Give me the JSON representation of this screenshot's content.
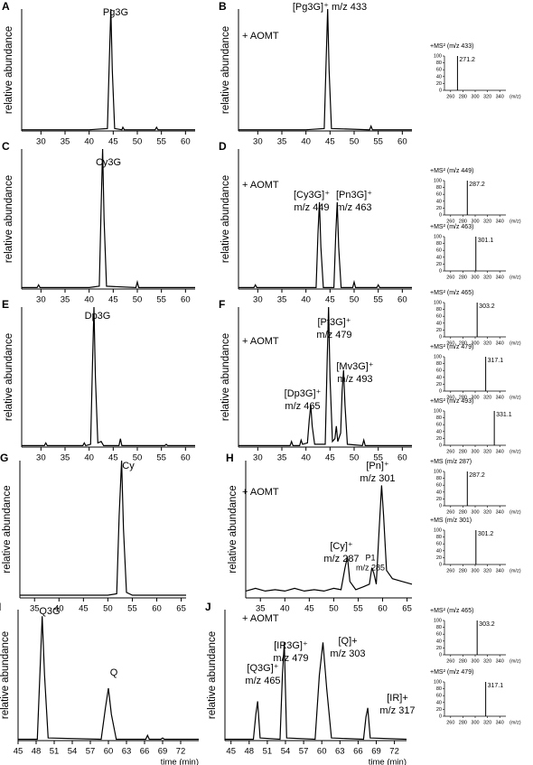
{
  "chart_data": [
    {
      "type": "line",
      "panel_label": "A",
      "ylabel": "relative abundance",
      "annotations": [
        "Pg3G"
      ],
      "x": [
        26,
        30,
        40,
        43.8,
        44.2,
        44.5,
        44.8,
        45.3,
        46.8,
        47,
        47.3,
        53.7,
        54,
        54.3,
        62
      ],
      "values": [
        1,
        1,
        1,
        2,
        60,
        100,
        50,
        2,
        1,
        3,
        1,
        1,
        3,
        1,
        1
      ],
      "xlim": [
        26,
        62
      ],
      "ylim": [
        0,
        100
      ],
      "xticks": [
        30,
        35,
        40,
        45,
        50,
        55,
        60
      ]
    },
    {
      "type": "line",
      "panel_label": "B",
      "ylabel": "relative abundance",
      "annotations": [
        "+ AOMT",
        "[Pg3G]⁺ m/z 433"
      ],
      "x": [
        26,
        30,
        40,
        43.8,
        44.2,
        44.5,
        44.8,
        45.3,
        53.2,
        53.5,
        53.8,
        62
      ],
      "values": [
        1,
        1,
        1,
        2,
        60,
        100,
        50,
        2,
        1,
        4,
        1,
        1
      ],
      "xlim": [
        26,
        62
      ],
      "ylim": [
        0,
        100
      ],
      "xticks": [
        30,
        35,
        40,
        45,
        50,
        55,
        60
      ]
    },
    {
      "type": "bar",
      "title": "+MS² (m/z 433)",
      "xlabel": "(m/z)",
      "x": [
        271.2
      ],
      "values": [
        100
      ],
      "xlim": [
        250,
        350
      ],
      "ylim": [
        0,
        100
      ],
      "xticks": [
        260,
        280,
        300,
        320,
        340
      ],
      "yticks": [
        0,
        20,
        40,
        60,
        80,
        100
      ]
    },
    {
      "type": "line",
      "panel_label": "C",
      "ylabel": "relative abundance",
      "annotations": [
        "Cy3G"
      ],
      "x": [
        26,
        29.2,
        29.5,
        29.8,
        40,
        42.1,
        42.5,
        42.8,
        43.1,
        43.6,
        49.7,
        50,
        50.3,
        62
      ],
      "values": [
        1,
        1,
        3,
        1,
        1,
        2,
        60,
        100,
        50,
        2,
        1,
        5,
        1,
        1
      ],
      "xlim": [
        26,
        62
      ],
      "ylim": [
        0,
        100
      ],
      "xticks": [
        30,
        35,
        40,
        45,
        50,
        55,
        60
      ]
    },
    {
      "type": "line",
      "panel_label": "D",
      "ylabel": "relative abundance",
      "annotations": [
        "+ AOMT",
        "[Cy3G]⁺",
        "m/z 449",
        "[Pn3G]⁺",
        "m/z 463"
      ],
      "x": [
        26,
        29.2,
        29.5,
        29.8,
        42.1,
        42.5,
        42.8,
        43.1,
        43.6,
        45.8,
        46.2,
        46.5,
        46.8,
        47.3,
        49.7,
        50,
        50.3,
        54.7,
        55,
        55.3,
        62
      ],
      "values": [
        1,
        1,
        3,
        1,
        1,
        40,
        62,
        30,
        1,
        1,
        40,
        62,
        30,
        1,
        1,
        5,
        1,
        1,
        3,
        1,
        1
      ],
      "xlim": [
        26,
        62
      ],
      "ylim": [
        0,
        100
      ],
      "xticks": [
        30,
        35,
        40,
        45,
        50,
        55,
        60
      ]
    },
    {
      "type": "bar",
      "title": "+MS² (m/z 449)",
      "xlabel": "(m/z)",
      "x": [
        287.2
      ],
      "values": [
        100
      ],
      "xlim": [
        250,
        350
      ],
      "ylim": [
        0,
        100
      ],
      "xticks": [
        260,
        280,
        300,
        320,
        340
      ],
      "yticks": [
        0,
        20,
        40,
        60,
        80,
        100
      ]
    },
    {
      "type": "bar",
      "title": "+MS² (m/z 463)",
      "xlabel": "(m/z)",
      "x": [
        301.1
      ],
      "values": [
        100
      ],
      "xlim": [
        250,
        350
      ],
      "ylim": [
        0,
        100
      ],
      "xticks": [
        260,
        280,
        300,
        320,
        340
      ],
      "yticks": [
        0,
        20,
        40,
        60,
        80,
        100
      ]
    },
    {
      "type": "line",
      "panel_label": "E",
      "ylabel": "relative abundance",
      "annotations": [
        "Dp3G"
      ],
      "x": [
        26,
        30.7,
        31,
        31.3,
        38.7,
        39,
        39.3,
        40.3,
        40.7,
        41,
        41.3,
        41.8,
        42.5,
        43,
        46.2,
        46.5,
        46.8,
        55.7,
        56,
        56.3,
        62
      ],
      "values": [
        1,
        1,
        3,
        1,
        1,
        3,
        1,
        2,
        60,
        100,
        50,
        3,
        4,
        1,
        1,
        6,
        1,
        1,
        2,
        1,
        1
      ],
      "xlim": [
        26,
        62
      ],
      "ylim": [
        0,
        100
      ],
      "xticks": [
        30,
        35,
        40,
        45,
        50,
        55,
        60
      ]
    },
    {
      "type": "line",
      "panel_label": "F",
      "ylabel": "relative abundance",
      "annotations": [
        "+ AOMT",
        "[Pt3G]⁺",
        "m/z 479",
        "[Mv3G]⁺",
        "m/z 493",
        "[Dp3G]⁺",
        "m/z 465"
      ],
      "x": [
        26,
        36.7,
        37,
        37.3,
        38.7,
        39,
        39.3,
        40.3,
        40.7,
        41,
        41.3,
        41.8,
        44,
        44.4,
        44.7,
        45,
        45.5,
        46,
        46.3,
        46.6,
        47.2,
        47.5,
        47.8,
        48.1,
        48.6,
        51.7,
        52,
        52.3,
        62
      ],
      "values": [
        1,
        1,
        4,
        1,
        1,
        5,
        2,
        3,
        20,
        30,
        15,
        2,
        2,
        60,
        100,
        50,
        4,
        6,
        15,
        4,
        10,
        40,
        55,
        30,
        2,
        1,
        5,
        1,
        1
      ],
      "xlim": [
        26,
        62
      ],
      "ylim": [
        0,
        100
      ],
      "xticks": [
        30,
        35,
        40,
        45,
        50,
        55,
        60
      ]
    },
    {
      "type": "bar",
      "title": "+MS² (m/z 465)",
      "xlabel": "(m/z)",
      "x": [
        303.2
      ],
      "values": [
        100
      ],
      "xlim": [
        250,
        350
      ],
      "ylim": [
        0,
        100
      ],
      "xticks": [
        260,
        280,
        300,
        320,
        340
      ],
      "yticks": [
        0,
        20,
        40,
        60,
        80,
        100
      ]
    },
    {
      "type": "bar",
      "title": "+MS² (m/z 479)",
      "xlabel": "(m/z)",
      "x": [
        317.1
      ],
      "values": [
        100
      ],
      "xlim": [
        250,
        350
      ],
      "ylim": [
        0,
        100
      ],
      "xticks": [
        260,
        280,
        300,
        320,
        340
      ],
      "yticks": [
        0,
        20,
        40,
        60,
        80,
        100
      ]
    },
    {
      "type": "bar",
      "title": "+MS² (m/z 493)",
      "xlabel": "(m/z)",
      "x": [
        331.1
      ],
      "values": [
        100
      ],
      "xlim": [
        250,
        350
      ],
      "ylim": [
        0,
        100
      ],
      "xticks": [
        260,
        280,
        300,
        320,
        340
      ],
      "yticks": [
        0,
        20,
        40,
        60,
        80,
        100
      ]
    },
    {
      "type": "line",
      "panel_label": "G",
      "ylabel": "relative abundance",
      "annotations": [
        "Cy"
      ],
      "x": [
        32,
        40,
        50,
        51.8,
        52.3,
        52.8,
        53.2,
        53.8,
        55,
        66
      ],
      "values": [
        2,
        2,
        2,
        3,
        60,
        100,
        50,
        4,
        2,
        2
      ],
      "xlim": [
        32,
        66
      ],
      "ylim": [
        0,
        100
      ],
      "xticks": [
        35,
        40,
        45,
        50,
        55,
        60,
        65
      ]
    },
    {
      "type": "line",
      "panel_label": "H",
      "ylabel": "relative abundance",
      "annotations": [
        "+ AOMT",
        "[Pn]⁺",
        "m/z 301",
        "[Cy]⁺",
        "m/z 287",
        "P1",
        "m/z 285"
      ],
      "x": [
        32,
        34,
        36,
        38,
        40,
        42,
        44,
        46,
        48,
        50,
        51.5,
        52.3,
        52.8,
        53.3,
        54.5,
        56,
        57.3,
        57.8,
        58.2,
        58.7,
        59.3,
        59.8,
        60.2,
        60.8,
        62,
        64,
        66
      ],
      "values": [
        5,
        7,
        5,
        6,
        5,
        7,
        5,
        6,
        5,
        7,
        6,
        22,
        30,
        12,
        6,
        8,
        10,
        22,
        18,
        10,
        50,
        82,
        60,
        20,
        14,
        12,
        10
      ],
      "xlim": [
        32,
        66
      ],
      "ylim": [
        0,
        100
      ],
      "xticks": [
        35,
        40,
        45,
        50,
        55,
        60,
        65
      ]
    },
    {
      "type": "bar",
      "title": "+MS (m/z 287)",
      "xlabel": "(m/z)",
      "x": [
        287.2
      ],
      "values": [
        100
      ],
      "xlim": [
        250,
        350
      ],
      "ylim": [
        0,
        100
      ],
      "xticks": [
        260,
        280,
        300,
        320,
        340
      ],
      "yticks": [
        0,
        20,
        40,
        60,
        80,
        100
      ]
    },
    {
      "type": "bar",
      "title": "+MS (m/z 301)",
      "xlabel": "(m/z)",
      "x": [
        301.2
      ],
      "values": [
        100
      ],
      "xlim": [
        250,
        350
      ],
      "ylim": [
        0,
        100
      ],
      "xticks": [
        260,
        280,
        300,
        320,
        340
      ],
      "yticks": [
        0,
        20,
        40,
        60,
        80,
        100
      ]
    },
    {
      "type": "line",
      "panel_label": "I",
      "annotations": [
        "Q3G",
        "Q"
      ],
      "ylabel": "relative abundance",
      "xlabel": "time (min)",
      "x": [
        45,
        48.2,
        48.7,
        49,
        49.4,
        50,
        58.8,
        59.5,
        60,
        60.5,
        61.3,
        66.2,
        66.5,
        66.8,
        68.7,
        69,
        69.3,
        75
      ],
      "values": [
        1,
        1,
        60,
        95,
        50,
        2,
        1,
        25,
        40,
        20,
        1,
        1,
        4,
        1,
        1,
        2,
        1,
        1
      ],
      "xlim": [
        45,
        75
      ],
      "ylim": [
        0,
        100
      ],
      "xticks": [
        45,
        48,
        51,
        54,
        57,
        60,
        63,
        66,
        69,
        72
      ]
    },
    {
      "type": "line",
      "panel_label": "J",
      "annotations": [
        "+ AOMT",
        "[IR3G]⁺",
        "m/z 479",
        "[Q3G]⁺",
        "m/z 465",
        "[Q]+",
        "m/z 303",
        "[IR]+",
        "m/z 317"
      ],
      "ylabel": "relative abundance",
      "xlabel": "time (min)",
      "x": [
        44,
        48.7,
        49.1,
        49.4,
        49.8,
        53.1,
        53.5,
        53.8,
        54.2,
        58.9,
        59.6,
        60.2,
        60.8,
        61.6,
        66.9,
        67.3,
        67.6,
        68,
        74
      ],
      "values": [
        1,
        1,
        20,
        30,
        2,
        1,
        50,
        75,
        2,
        1,
        50,
        75,
        40,
        2,
        1,
        18,
        25,
        2,
        1
      ],
      "xlim": [
        44,
        74
      ],
      "ylim": [
        0,
        100
      ],
      "xticks": [
        45,
        48,
        51,
        54,
        57,
        60,
        63,
        66,
        69,
        72
      ]
    },
    {
      "type": "bar",
      "title": "+MS² (m/z 465)",
      "xlabel": "(m/z)",
      "x": [
        303.2
      ],
      "values": [
        100
      ],
      "xlim": [
        250,
        350
      ],
      "ylim": [
        0,
        100
      ],
      "xticks": [
        260,
        280,
        300,
        320,
        340
      ],
      "yticks": [
        0,
        20,
        40,
        60,
        80,
        100
      ]
    },
    {
      "type": "bar",
      "title": "+MS² (m/z 479)",
      "xlabel": "(m/z)",
      "x": [
        317.1
      ],
      "values": [
        100
      ],
      "xlim": [
        250,
        350
      ],
      "ylim": [
        0,
        100
      ],
      "xticks": [
        260,
        280,
        300,
        320,
        340
      ],
      "yticks": [
        0,
        20,
        40,
        60,
        80,
        100
      ]
    }
  ]
}
